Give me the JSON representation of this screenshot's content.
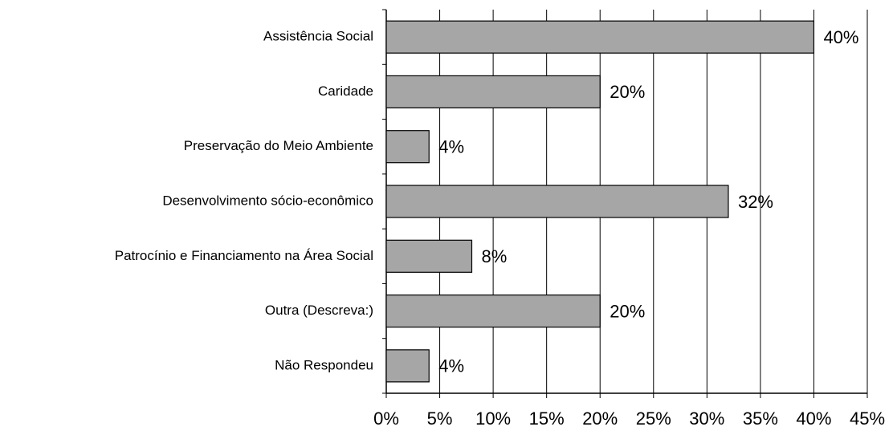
{
  "chart_data": {
    "type": "bar",
    "orientation": "horizontal",
    "categories": [
      "Assistência Social",
      "Caridade",
      "Preservação do Meio Ambiente",
      "Desenvolvimento sócio-econômico",
      "Patrocínio e Financiamento  na Área Social",
      "Outra (Descreva:)",
      "Não Respondeu"
    ],
    "values": [
      40,
      20,
      4,
      32,
      8,
      20,
      4
    ],
    "value_labels": [
      "40%",
      "20%",
      "4%",
      "32%",
      "8%",
      "20%",
      "4%"
    ],
    "color": "#a6a6a6",
    "xlim": [
      0,
      45
    ],
    "xticks": [
      {
        "value": 0,
        "label": "0%"
      },
      {
        "value": 5,
        "label": "5%"
      },
      {
        "value": 10,
        "label": "10%"
      },
      {
        "value": 15,
        "label": "15%"
      },
      {
        "value": 20,
        "label": "20%"
      },
      {
        "value": 25,
        "label": "25%"
      },
      {
        "value": 30,
        "label": "30%"
      },
      {
        "value": 35,
        "label": "35%"
      },
      {
        "value": 40,
        "label": "40%"
      },
      {
        "value": 45,
        "label": "45%"
      }
    ],
    "grid": true
  }
}
